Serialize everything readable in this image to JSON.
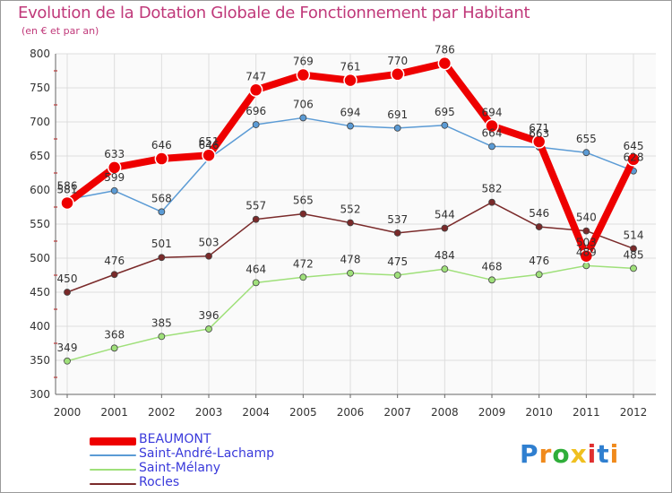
{
  "header": {
    "title": "Evolution de la Dotation Globale de Fonctionnement par Habitant",
    "subtitle": "(en € et par an)"
  },
  "logo": {
    "text": "Proxiti",
    "colors": [
      "#2f7fd0",
      "#f08a1c",
      "#2fae3a",
      "#f0c020",
      "#e03030",
      "#2f7fd0",
      "#f08a1c"
    ]
  },
  "chart_data": {
    "type": "line",
    "x": [
      2000,
      2001,
      2002,
      2003,
      2004,
      2005,
      2006,
      2007,
      2008,
      2009,
      2010,
      2011,
      2012
    ],
    "ylim": [
      300,
      800
    ],
    "yticks": [
      300,
      350,
      400,
      450,
      500,
      550,
      600,
      650,
      700,
      750,
      800
    ],
    "grid": true,
    "legend_position": "bottom-left",
    "series": [
      {
        "name": "BEAUMONT",
        "color": "#ee0000",
        "values": [
          581,
          633,
          646,
          651,
          747,
          769,
          761,
          770,
          786,
          694,
          671,
          503,
          645
        ]
      },
      {
        "name": "Saint-André-Lachamp",
        "color": "#5b9bd5",
        "values": [
          586,
          599,
          568,
          646,
          696,
          706,
          694,
          691,
          695,
          664,
          663,
          655,
          628
        ]
      },
      {
        "name": "Saint-Mélany",
        "color": "#9fe07a",
        "values": [
          349,
          368,
          385,
          396,
          464,
          472,
          478,
          475,
          484,
          468,
          476,
          489,
          485
        ]
      },
      {
        "name": "Rocles",
        "color": "#7a2a2a",
        "values": [
          450,
          476,
          501,
          503,
          557,
          565,
          552,
          537,
          544,
          582,
          546,
          540,
          514
        ]
      }
    ]
  }
}
